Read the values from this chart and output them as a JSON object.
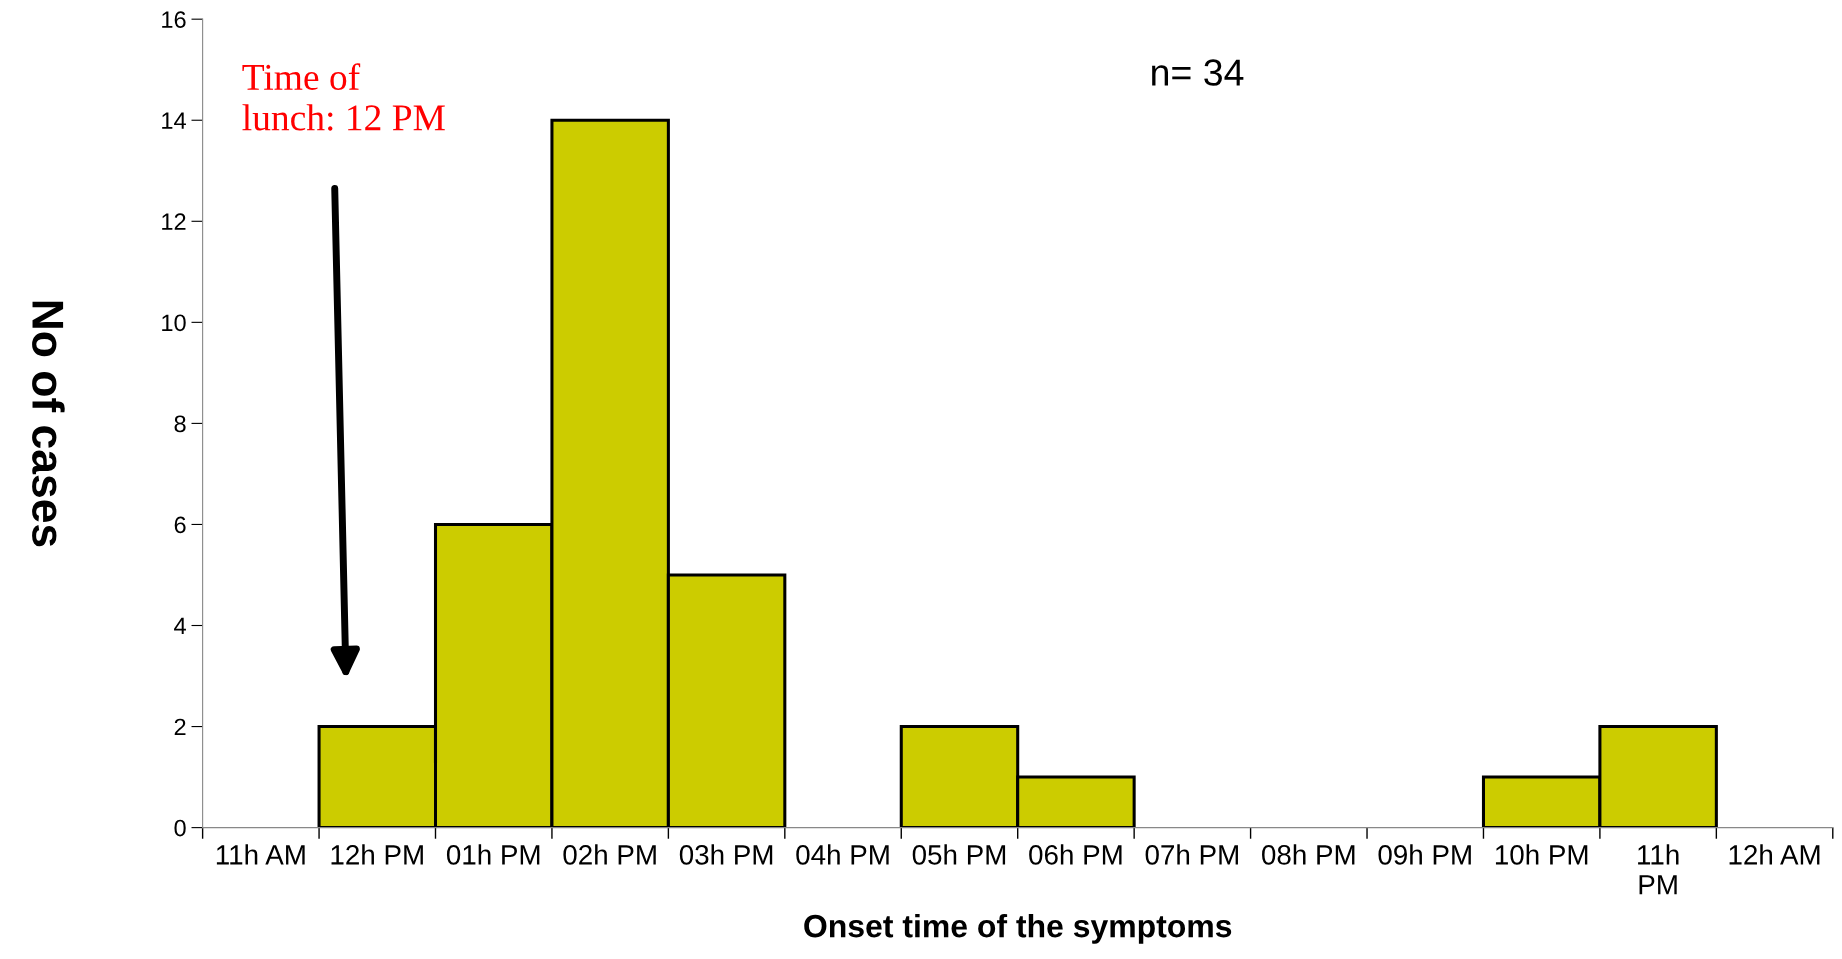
{
  "chart_data": {
    "type": "bar",
    "xlabel": "Onset time of the symptoms",
    "ylabel": "No of cases",
    "categories": [
      "11h AM",
      "12h PM",
      "01h PM",
      "02h PM",
      "03h PM",
      "04h PM",
      "05h PM",
      "06h PM",
      "07h PM",
      "08h PM",
      "09h PM",
      "10h PM",
      "11h\nPM",
      "12h AM"
    ],
    "values": [
      0,
      2,
      6,
      14,
      5,
      0,
      2,
      1,
      0,
      0,
      0,
      1,
      2,
      0
    ],
    "color": "#cccc00",
    "ylim": [
      0,
      16
    ],
    "yticks": [
      0,
      2,
      4,
      6,
      8,
      10,
      12,
      14,
      16
    ],
    "grid": false,
    "legend": false,
    "annotations": [
      "Time of\nlunch: 12 PM",
      "n= 34"
    ]
  }
}
